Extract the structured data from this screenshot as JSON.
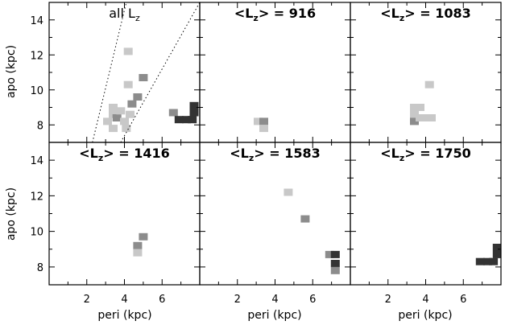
{
  "chart_data": {
    "type": "heatmap",
    "layout": "2x3 grid of panels sharing axes",
    "xlabel": "peri (kpc)",
    "ylabel": "apo (kpc)",
    "xlim": [
      0,
      8
    ],
    "ylim": [
      7,
      15
    ],
    "xticks": [
      "2",
      "4",
      "6"
    ],
    "yticks": [
      "8",
      "10",
      "12",
      "14"
    ],
    "colors": {
      "light": "#c8c8c8",
      "mid": "#8c8c8c",
      "dark": "#333333"
    },
    "panels": [
      {
        "title_pre": "all L",
        "title_post": "",
        "title_style": "light",
        "diagonal_lines": [
          {
            "x": [
              2.3,
              4.1
            ],
            "y": [
              7,
              15
            ]
          },
          {
            "x": [
              3.8,
              8.0
            ],
            "y": [
              7,
              15
            ]
          }
        ],
        "cells": [
          {
            "x": 4.2,
            "y": 12.2,
            "level": "light"
          },
          {
            "x": 4.2,
            "y": 10.3,
            "level": "light"
          },
          {
            "x": 4.4,
            "y": 9.2,
            "level": "mid"
          },
          {
            "x": 4.7,
            "y": 9.6,
            "level": "mid"
          },
          {
            "x": 5.0,
            "y": 10.7,
            "level": "mid"
          },
          {
            "x": 3.1,
            "y": 8.2,
            "level": "light"
          },
          {
            "x": 3.4,
            "y": 8.6,
            "level": "light"
          },
          {
            "x": 3.4,
            "y": 9.0,
            "level": "light"
          },
          {
            "x": 3.4,
            "y": 7.8,
            "level": "light"
          },
          {
            "x": 3.6,
            "y": 8.4,
            "level": "mid"
          },
          {
            "x": 3.8,
            "y": 8.8,
            "level": "light"
          },
          {
            "x": 4.0,
            "y": 8.2,
            "level": "light"
          },
          {
            "x": 4.1,
            "y": 7.8,
            "level": "light"
          },
          {
            "x": 4.3,
            "y": 8.6,
            "level": "light"
          },
          {
            "x": 6.6,
            "y": 8.7,
            "level": "mid"
          },
          {
            "x": 6.9,
            "y": 8.3,
            "level": "dark"
          },
          {
            "x": 7.3,
            "y": 8.3,
            "level": "dark"
          },
          {
            "x": 7.6,
            "y": 8.3,
            "level": "dark"
          },
          {
            "x": 7.7,
            "y": 8.7,
            "level": "dark"
          },
          {
            "x": 7.7,
            "y": 9.1,
            "level": "dark"
          }
        ]
      },
      {
        "title_pre": "<L",
        "title_post": "> = 916",
        "title_style": "bold",
        "cells": [
          {
            "x": 3.1,
            "y": 8.2,
            "level": "light"
          },
          {
            "x": 3.4,
            "y": 8.2,
            "level": "mid"
          },
          {
            "x": 3.4,
            "y": 7.8,
            "level": "light"
          }
        ]
      },
      {
        "title_pre": "<L",
        "title_post": "> = 1083",
        "title_style": "bold",
        "cells": [
          {
            "x": 4.2,
            "y": 10.3,
            "level": "light"
          },
          {
            "x": 3.4,
            "y": 9.0,
            "level": "light"
          },
          {
            "x": 3.7,
            "y": 9.0,
            "level": "light"
          },
          {
            "x": 3.4,
            "y": 8.6,
            "level": "light"
          },
          {
            "x": 3.4,
            "y": 8.2,
            "level": "mid"
          },
          {
            "x": 3.7,
            "y": 8.4,
            "level": "light"
          },
          {
            "x": 4.0,
            "y": 8.4,
            "level": "light"
          },
          {
            "x": 4.3,
            "y": 8.4,
            "level": "light"
          }
        ]
      },
      {
        "title_pre": "<L",
        "title_post": "> = 1416",
        "title_style": "bold",
        "cells": [
          {
            "x": 5.0,
            "y": 9.7,
            "level": "mid"
          },
          {
            "x": 4.7,
            "y": 9.2,
            "level": "mid"
          },
          {
            "x": 4.7,
            "y": 8.8,
            "level": "light"
          }
        ]
      },
      {
        "title_pre": "<L",
        "title_post": "> = 1583",
        "title_style": "bold",
        "cells": [
          {
            "x": 4.7,
            "y": 12.2,
            "level": "light"
          },
          {
            "x": 5.6,
            "y": 10.7,
            "level": "mid"
          },
          {
            "x": 6.9,
            "y": 8.7,
            "level": "mid"
          },
          {
            "x": 7.2,
            "y": 8.7,
            "level": "dark"
          },
          {
            "x": 7.2,
            "y": 8.2,
            "level": "dark"
          },
          {
            "x": 7.2,
            "y": 7.8,
            "level": "mid"
          }
        ]
      },
      {
        "title_pre": "<L",
        "title_post": "> = 1750",
        "title_style": "bold",
        "cells": [
          {
            "x": 6.9,
            "y": 8.3,
            "level": "dark"
          },
          {
            "x": 7.3,
            "y": 8.3,
            "level": "dark"
          },
          {
            "x": 7.6,
            "y": 8.3,
            "level": "dark"
          },
          {
            "x": 7.8,
            "y": 8.7,
            "level": "dark"
          },
          {
            "x": 7.8,
            "y": 9.1,
            "level": "dark"
          }
        ]
      }
    ],
    "subscript": "z"
  }
}
